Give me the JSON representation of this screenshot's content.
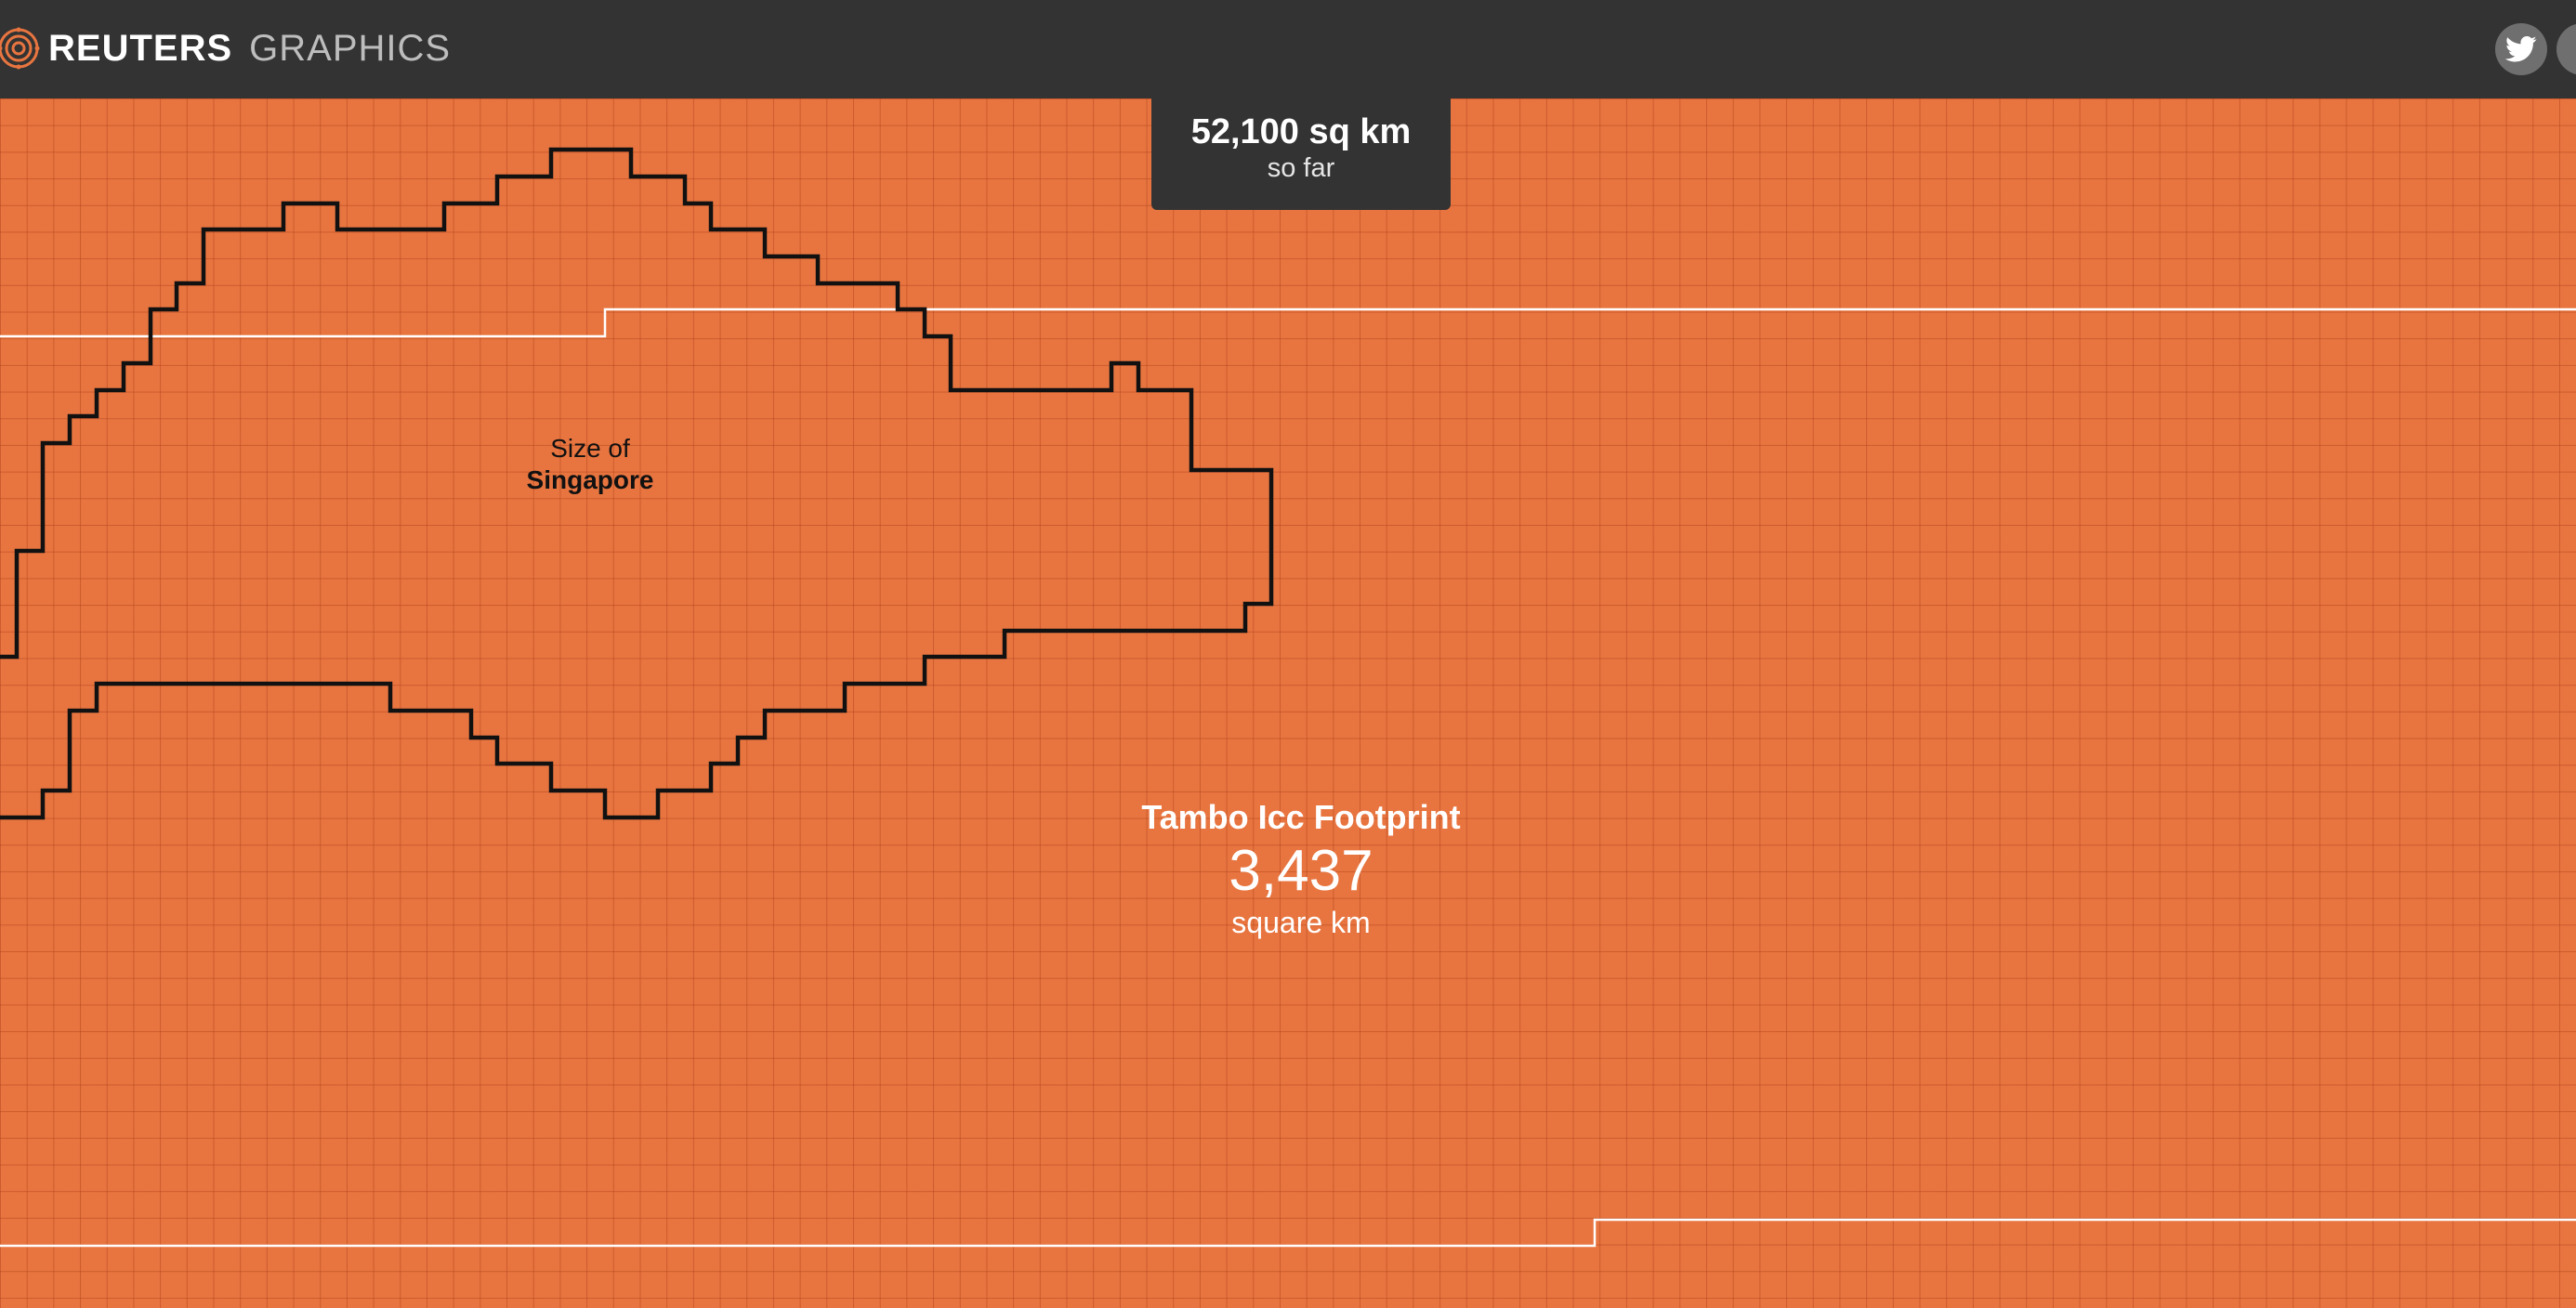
{
  "header": {
    "brand": "REUTERS",
    "section": "GRAPHICS",
    "share_buttons": [
      {
        "icon": "twitter-icon"
      },
      {
        "icon": "share-icon"
      }
    ]
  },
  "summary": {
    "value": "52,100 sq km",
    "caption": "so far"
  },
  "comparison": {
    "prefix": "Size of",
    "name": "Singapore"
  },
  "footprint": {
    "title": "Tambo Icc Footprint",
    "value": "3,437",
    "unit": "square km"
  },
  "colors": {
    "background": "#e87540",
    "header": "#333333",
    "outline": "#111111",
    "boundary": "#ffffff"
  }
}
